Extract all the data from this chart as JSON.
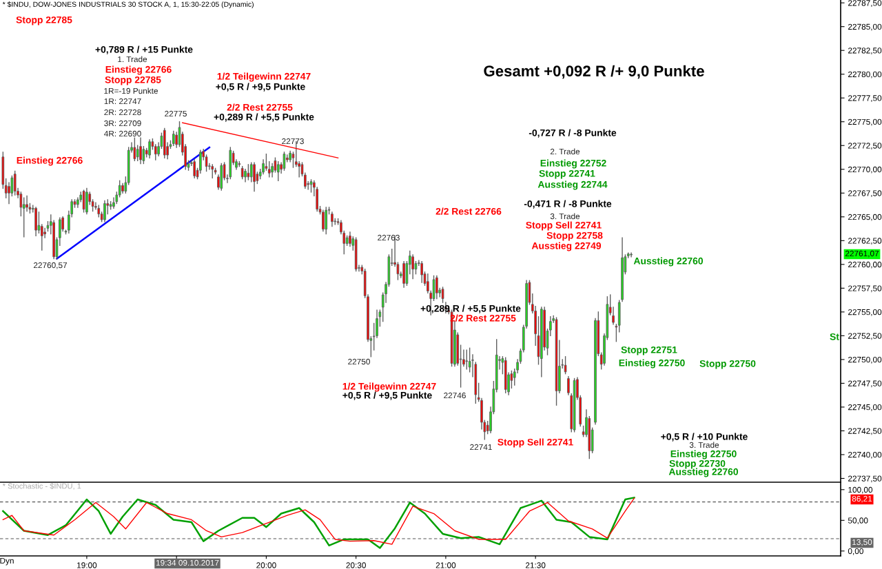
{
  "chart_data": [
    {
      "type": "candlestick",
      "title": "* $INDU, DOW-JONES INDUSTRIALS 30 STOCK A, 1, 15:30-22:05 (Dynamic)",
      "subtitle": "Gesamt +0,092 R /+ 9,0 Punkte",
      "x": [
        "2017-10-09T18:32",
        "2017-10-09T18:33",
        "2017-10-09T18:34",
        "2017-10-09T18:35",
        "2017-10-09T18:36",
        "2017-10-09T18:37",
        "2017-10-09T18:38",
        "2017-10-09T18:39",
        "2017-10-09T18:40",
        "2017-10-09T18:41",
        "2017-10-09T18:42",
        "2017-10-09T18:43",
        "2017-10-09T18:44",
        "2017-10-09T18:45",
        "2017-10-09T18:46",
        "2017-10-09T18:47",
        "2017-10-09T18:48",
        "2017-10-09T18:49",
        "2017-10-09T18:50",
        "2017-10-09T18:51",
        "2017-10-09T18:52",
        "2017-10-09T18:53",
        "2017-10-09T18:54",
        "2017-10-09T18:55",
        "2017-10-09T18:56",
        "2017-10-09T18:57",
        "2017-10-09T18:58",
        "2017-10-09T18:59",
        "2017-10-09T19:00",
        "2017-10-09T19:01",
        "2017-10-09T19:02",
        "2017-10-09T19:03",
        "2017-10-09T19:04",
        "2017-10-09T19:05",
        "2017-10-09T19:06",
        "2017-10-09T19:07",
        "2017-10-09T19:08",
        "2017-10-09T19:09",
        "2017-10-09T19:10",
        "2017-10-09T19:11",
        "2017-10-09T19:12",
        "2017-10-09T19:13",
        "2017-10-09T19:14",
        "2017-10-09T19:15",
        "2017-10-09T19:16",
        "2017-10-09T19:17",
        "2017-10-09T19:18",
        "2017-10-09T19:19",
        "2017-10-09T19:20",
        "2017-10-09T19:21",
        "2017-10-09T19:22",
        "2017-10-09T19:23",
        "2017-10-09T19:24",
        "2017-10-09T19:25",
        "2017-10-09T19:26",
        "2017-10-09T19:27",
        "2017-10-09T19:28",
        "2017-10-09T19:29",
        "2017-10-09T19:30",
        "2017-10-09T19:31",
        "2017-10-09T19:32",
        "2017-10-09T19:33",
        "2017-10-09T19:34",
        "2017-10-09T19:35",
        "2017-10-09T19:36",
        "2017-10-09T19:37",
        "2017-10-09T19:38",
        "2017-10-09T19:39",
        "2017-10-09T19:40",
        "2017-10-09T19:41",
        "2017-10-09T19:42",
        "2017-10-09T19:43",
        "2017-10-09T19:44",
        "2017-10-09T19:45",
        "2017-10-09T19:46",
        "2017-10-09T19:47",
        "2017-10-09T19:48",
        "2017-10-09T19:49",
        "2017-10-09T19:50",
        "2017-10-09T19:51",
        "2017-10-09T19:52",
        "2017-10-09T19:53",
        "2017-10-09T19:54",
        "2017-10-09T19:55",
        "2017-10-09T19:56",
        "2017-10-09T19:57",
        "2017-10-09T19:58",
        "2017-10-09T19:59",
        "2017-10-09T20:00",
        "2017-10-09T20:01",
        "2017-10-09T20:02",
        "2017-10-09T20:03",
        "2017-10-09T20:04",
        "2017-10-09T20:05",
        "2017-10-09T20:06",
        "2017-10-09T20:07",
        "2017-10-09T20:08",
        "2017-10-09T20:09",
        "2017-10-09T20:10",
        "2017-10-09T20:11",
        "2017-10-09T20:12",
        "2017-10-09T20:13",
        "2017-10-09T20:14",
        "2017-10-09T20:15",
        "2017-10-09T20:16",
        "2017-10-09T20:17",
        "2017-10-09T20:18",
        "2017-10-09T20:19",
        "2017-10-09T20:20",
        "2017-10-09T20:21",
        "2017-10-09T20:22",
        "2017-10-09T20:23",
        "2017-10-09T20:24",
        "2017-10-09T20:25",
        "2017-10-09T20:26",
        "2017-10-09T20:27",
        "2017-10-09T20:28",
        "2017-10-09T20:29",
        "2017-10-09T20:30",
        "2017-10-09T20:31",
        "2017-10-09T20:32",
        "2017-10-09T20:33",
        "2017-10-09T20:34",
        "2017-10-09T20:35",
        "2017-10-09T20:36",
        "2017-10-09T20:37",
        "2017-10-09T20:38",
        "2017-10-09T20:39",
        "2017-10-09T20:40",
        "2017-10-09T20:41",
        "2017-10-09T20:42",
        "2017-10-09T20:43",
        "2017-10-09T20:44",
        "2017-10-09T20:45",
        "2017-10-09T20:46",
        "2017-10-09T20:47",
        "2017-10-09T20:48",
        "2017-10-09T20:49",
        "2017-10-09T20:50",
        "2017-10-09T20:51",
        "2017-10-09T20:52",
        "2017-10-09T20:53",
        "2017-10-09T20:54",
        "2017-10-09T20:55",
        "2017-10-09T20:56",
        "2017-10-09T20:57",
        "2017-10-09T20:58",
        "2017-10-09T20:59",
        "2017-10-09T21:00",
        "2017-10-09T21:01",
        "2017-10-09T21:02",
        "2017-10-09T21:03",
        "2017-10-09T21:04",
        "2017-10-09T21:05",
        "2017-10-09T21:06",
        "2017-10-09T21:07",
        "2017-10-09T21:08",
        "2017-10-09T21:09",
        "2017-10-09T21:10",
        "2017-10-09T21:11",
        "2017-10-09T21:12",
        "2017-10-09T21:13",
        "2017-10-09T21:14",
        "2017-10-09T21:15",
        "2017-10-09T21:16",
        "2017-10-09T21:17",
        "2017-10-09T21:18",
        "2017-10-09T21:19",
        "2017-10-09T21:20",
        "2017-10-09T21:21",
        "2017-10-09T21:22",
        "2017-10-09T21:23",
        "2017-10-09T21:24",
        "2017-10-09T21:25",
        "2017-10-09T21:26",
        "2017-10-09T21:27",
        "2017-10-09T21:28",
        "2017-10-09T21:29",
        "2017-10-09T21:30",
        "2017-10-09T21:31",
        "2017-10-09T21:32",
        "2017-10-09T21:33",
        "2017-10-09T21:34",
        "2017-10-09T21:35",
        "2017-10-09T21:36",
        "2017-10-09T21:37",
        "2017-10-09T21:38",
        "2017-10-09T21:39",
        "2017-10-09T21:40",
        "2017-10-09T21:41",
        "2017-10-09T21:42",
        "2017-10-09T21:43",
        "2017-10-09T21:44",
        "2017-10-09T21:45",
        "2017-10-09T21:46",
        "2017-10-09T21:47",
        "2017-10-09T21:48",
        "2017-10-09T21:49",
        "2017-10-09T21:50",
        "2017-10-09T21:51",
        "2017-10-09T21:52",
        "2017-10-09T21:53",
        "2017-10-09T21:54",
        "2017-10-09T21:55",
        "2017-10-09T21:56",
        "2017-10-09T21:57",
        "2017-10-09T21:58",
        "2017-10-09T21:59",
        "2017-10-09T22:00",
        "2017-10-09T22:01",
        "2017-10-09T22:02"
      ],
      "ohlc": [
        [
          22771.3,
          22771.8,
          22768.0,
          22768.4
        ],
        [
          22768.3,
          22769.0,
          22767.0,
          22767.5
        ],
        [
          22768.2,
          22768.6,
          22766.4,
          22767.5
        ],
        [
          22767.5,
          22769.3,
          22767.2,
          22769.1
        ],
        [
          22769.5,
          22769.8,
          22767.3,
          22767.7
        ],
        [
          22767.7,
          22768.0,
          22767.0,
          22767.3
        ],
        [
          22767.4,
          22767.6,
          22765.1,
          22766.0
        ],
        [
          22765.9,
          22767.0,
          22762.9,
          22766.3
        ],
        [
          22766.3,
          22767.2,
          22765.6,
          22766.0
        ],
        [
          22766.0,
          22766.4,
          22765.4,
          22765.8
        ],
        [
          22765.8,
          22766.2,
          22765.5,
          22765.9
        ],
        [
          22765.9,
          22766.0,
          22763.0,
          22763.6
        ],
        [
          22763.6,
          22765.5,
          22763.3,
          22764.1
        ],
        [
          22764.0,
          22764.2,
          22761.5,
          22763.0
        ],
        [
          22763.4,
          22763.8,
          22762.8,
          22763.2
        ],
        [
          22763.8,
          22764.5,
          22763.5,
          22764.1
        ],
        [
          22764.1,
          22765.2,
          22763.2,
          22764.5
        ],
        [
          22764.4,
          22764.6,
          22760.6,
          22760.8
        ],
        [
          22760.8,
          22762.8,
          22760.57,
          22762.6
        ],
        [
          22762.8,
          22764.9,
          22762.0,
          22764.7
        ],
        [
          22764.9,
          22765.0,
          22763.5,
          22763.7
        ],
        [
          22763.4,
          22763.6,
          22763.2,
          22763.5
        ],
        [
          22763.6,
          22765.6,
          22763.3,
          22765.2
        ],
        [
          22765.3,
          22766.8,
          22765.0,
          22766.6
        ],
        [
          22766.6,
          22766.8,
          22766.0,
          22766.3
        ],
        [
          22766.3,
          22767.0,
          22766.0,
          22766.8
        ],
        [
          22766.8,
          22767.6,
          22766.6,
          22767.3
        ],
        [
          22767.7,
          22767.8,
          22765.5,
          22765.8
        ],
        [
          22765.5,
          22768.0,
          22765.3,
          22767.6
        ],
        [
          22767.4,
          22767.6,
          22766.3,
          22766.6
        ],
        [
          22766.6,
          22766.8,
          22765.6,
          22766.1
        ],
        [
          22766.1,
          22766.5,
          22765.8,
          22766.0
        ],
        [
          22765.9,
          22766.2,
          22765.0,
          22765.3
        ],
        [
          22765.3,
          22765.5,
          22764.5,
          22764.7
        ],
        [
          22764.7,
          22766.7,
          22764.5,
          22766.4
        ],
        [
          22766.4,
          22766.8,
          22765.3,
          22766.2
        ],
        [
          22766.1,
          22766.6,
          22765.8,
          22766.3
        ],
        [
          22766.1,
          22767.0,
          22765.9,
          22766.5
        ],
        [
          22766.6,
          22767.6,
          22766.4,
          22767.3
        ],
        [
          22767.3,
          22768.8,
          22767.1,
          22768.3
        ],
        [
          22768.3,
          22768.5,
          22767.5,
          22767.7
        ],
        [
          22767.7,
          22769.2,
          22767.5,
          22768.6
        ],
        [
          22768.6,
          22772.3,
          22768.4,
          22772.0
        ],
        [
          22772.0,
          22772.8,
          22771.8,
          22772.3
        ],
        [
          22772.3,
          22773.3,
          22770.9,
          22771.1
        ],
        [
          22771.3,
          22772.5,
          22770.9,
          22772.1
        ],
        [
          22772.4,
          22773.3,
          22770.6,
          22771.0
        ],
        [
          22770.9,
          22772.4,
          22770.6,
          22772.1
        ],
        [
          22772.0,
          22772.2,
          22771.3,
          22771.6
        ],
        [
          22771.5,
          22773.1,
          22771.2,
          22772.9
        ],
        [
          22772.9,
          22773.2,
          22772.1,
          22772.4
        ],
        [
          22772.4,
          22772.6,
          22771.0,
          22771.6
        ],
        [
          22771.6,
          22772.8,
          22771.4,
          22772.4
        ],
        [
          22772.4,
          22773.8,
          22772.2,
          22773.5
        ],
        [
          22774.1,
          22774.3,
          22771.2,
          22771.5
        ],
        [
          22772.4,
          22772.8,
          22771.1,
          22771.5
        ],
        [
          22772.4,
          22773.0,
          22772.2,
          22772.6
        ],
        [
          22772.7,
          22774.0,
          22772.5,
          22773.7
        ],
        [
          22773.6,
          22773.9,
          22772.3,
          22772.6
        ],
        [
          22772.6,
          22775.0,
          22772.4,
          22774.4
        ],
        [
          22773.7,
          22773.9,
          22771.5,
          22771.8
        ],
        [
          22772.4,
          22772.6,
          22770.0,
          22770.3
        ],
        [
          22770.2,
          22770.9,
          22769.9,
          22770.6
        ],
        [
          22770.6,
          22770.9,
          22770.4,
          22770.7
        ],
        [
          22770.8,
          22771.0,
          22769.1,
          22769.3
        ],
        [
          22769.9,
          22770.1,
          22769.0,
          22769.2
        ],
        [
          22769.9,
          22772.0,
          22769.6,
          22771.8
        ],
        [
          22771.9,
          22772.1,
          22771.0,
          22771.3
        ],
        [
          22771.3,
          22771.5,
          22769.8,
          22770.3
        ],
        [
          22770.3,
          22770.6,
          22770.0,
          22770.3
        ],
        [
          22770.3,
          22770.5,
          22769.1,
          22770.0
        ],
        [
          22769.9,
          22770.1,
          22769.5,
          22769.7
        ],
        [
          22769.2,
          22769.4,
          22767.9,
          22768.1
        ],
        [
          22768.0,
          22770.6,
          22767.8,
          22770.4
        ],
        [
          22770.5,
          22770.7,
          22768.9,
          22769.1
        ],
        [
          22769.0,
          22769.4,
          22768.6,
          22769.0
        ],
        [
          22769.2,
          22772.3,
          22769.0,
          22772.0
        ],
        [
          22771.7,
          22771.9,
          22770.5,
          22770.7
        ],
        [
          22770.2,
          22771.0,
          22770.0,
          22770.8
        ],
        [
          22770.6,
          22770.8,
          22770.3,
          22770.5
        ],
        [
          22770.1,
          22770.3,
          22769.0,
          22769.2
        ],
        [
          22769.2,
          22770.0,
          22768.7,
          22769.8
        ],
        [
          22769.6,
          22770.5,
          22768.9,
          22769.2
        ],
        [
          22769.2,
          22770.7,
          22768.7,
          22770.5
        ],
        [
          22770.5,
          22770.7,
          22767.7,
          22768.7
        ],
        [
          22769.5,
          22769.7,
          22768.5,
          22768.8
        ],
        [
          22769.3,
          22770.0,
          22769.0,
          22769.7
        ],
        [
          22769.7,
          22771.0,
          22769.5,
          22770.6
        ],
        [
          22770.3,
          22771.6,
          22769.9,
          22770.1
        ],
        [
          22770.0,
          22770.8,
          22769.2,
          22769.6
        ],
        [
          22769.7,
          22770.6,
          22769.2,
          22770.3
        ],
        [
          22770.9,
          22771.2,
          22769.7,
          22769.9
        ],
        [
          22769.7,
          22770.8,
          22768.8,
          22770.5
        ],
        [
          22770.5,
          22770.7,
          22769.6,
          22770.0
        ],
        [
          22770.1,
          22771.8,
          22769.9,
          22771.6
        ],
        [
          22771.2,
          22771.5,
          22770.8,
          22771.0
        ],
        [
          22771.0,
          22771.9,
          22770.8,
          22771.7
        ],
        [
          22771.6,
          22771.8,
          22770.2,
          22771.2
        ],
        [
          22770.8,
          22772.9,
          22770.3,
          22770.5
        ],
        [
          22770.6,
          22770.8,
          22769.2,
          22770.3
        ],
        [
          22770.5,
          22770.7,
          22769.3,
          22769.5
        ],
        [
          22769.4,
          22769.6,
          22768.0,
          22768.2
        ],
        [
          22768.5,
          22768.7,
          22767.9,
          22768.4
        ],
        [
          22768.4,
          22768.9,
          22767.6,
          22768.7
        ],
        [
          22768.6,
          22768.8,
          22767.2,
          22768.1
        ],
        [
          22767.9,
          22768.1,
          22765.6,
          22765.8
        ],
        [
          22765.8,
          22766.1,
          22765.3,
          22765.5
        ],
        [
          22765.5,
          22765.7,
          22763.5,
          22763.7
        ],
        [
          22763.7,
          22766.0,
          22763.2,
          22765.7
        ],
        [
          22765.7,
          22766.0,
          22765.3,
          22765.7
        ],
        [
          22765.3,
          22765.5,
          22764.0,
          22764.5
        ],
        [
          22764.5,
          22764.8,
          22764.2,
          22764.5
        ],
        [
          22764.5,
          22764.8,
          22764.2,
          22764.4
        ],
        [
          22764.4,
          22764.6,
          22763.2,
          22763.4
        ],
        [
          22763.3,
          22763.5,
          22761.1,
          22762.2
        ],
        [
          22762.2,
          22763.0,
          22762.0,
          22762.8
        ],
        [
          22763.0,
          22763.4,
          22761.9,
          22762.2
        ],
        [
          22762.0,
          22762.9,
          22761.5,
          22762.7
        ],
        [
          22762.6,
          22762.8,
          22759.3,
          22759.5
        ],
        [
          22759.6,
          22759.9,
          22759.3,
          22759.6
        ],
        [
          22759.7,
          22759.9,
          22759.0,
          22759.3
        ],
        [
          22759.3,
          22759.5,
          22756.5,
          22756.7
        ],
        [
          22756.6,
          22756.8,
          22751.9,
          22752.1
        ],
        [
          22752.0,
          22752.4,
          22750.3,
          22752.2
        ],
        [
          22752.4,
          22753.8,
          22751.0,
          22752.4
        ],
        [
          22752.5,
          22755.2,
          22752.3,
          22754.3
        ],
        [
          22754.5,
          22755.2,
          22753.5,
          22755.0
        ],
        [
          22755.5,
          22757.0,
          22754.0,
          22756.8
        ],
        [
          22756.9,
          22758.1,
          22756.0,
          22757.9
        ],
        [
          22757.9,
          22761.0,
          22757.7,
          22760.8
        ],
        [
          22760.1,
          22761.6,
          22759.9,
          22760.1
        ],
        [
          22760.2,
          22763.0,
          22759.8,
          22760.0
        ],
        [
          22760.0,
          22760.2,
          22758.4,
          22759.0
        ],
        [
          22758.8,
          22759.2,
          22758.6,
          22759.0
        ],
        [
          22760.1,
          22760.3,
          22757.6,
          22758.0
        ],
        [
          22758.0,
          22760.3,
          22757.8,
          22760.1
        ],
        [
          22760.0,
          22761.4,
          22759.0,
          22760.9
        ],
        [
          22760.8,
          22761.0,
          22758.5,
          22759.5
        ],
        [
          22759.5,
          22760.3,
          22759.0,
          22760.1
        ],
        [
          22760.1,
          22760.4,
          22759.9,
          22760.1
        ],
        [
          22760.1,
          22760.3,
          22758.1,
          22758.9
        ],
        [
          22759.0,
          22759.2,
          22757.8,
          22758.0
        ],
        [
          22758.2,
          22759.0,
          22757.0,
          22757.2
        ],
        [
          22757.0,
          22757.2,
          22754.7,
          22756.4
        ],
        [
          22756.4,
          22758.8,
          22756.2,
          22758.4
        ],
        [
          22758.6,
          22758.8,
          22756.4,
          22757.0
        ],
        [
          22757.0,
          22757.5,
          22756.6,
          22757.3
        ],
        [
          22757.4,
          22757.6,
          22756.0,
          22756.4
        ],
        [
          22755.5,
          22756.0,
          22754.9,
          22755.3
        ],
        [
          22755.2,
          22755.6,
          22754.8,
          22755.0
        ],
        [
          22755.0,
          22755.2,
          22749.3,
          22749.6
        ],
        [
          22749.5,
          22754.0,
          22749.3,
          22753.1
        ],
        [
          22752.6,
          22752.8,
          22749.4,
          22749.6
        ],
        [
          22750.0,
          22751.5,
          22747.1,
          22750.0
        ],
        [
          22750.0,
          22751.0,
          22749.3,
          22749.5
        ],
        [
          22749.8,
          22751.0,
          22749.0,
          22749.8
        ],
        [
          22749.2,
          22751.2,
          22748.7,
          22749.8
        ],
        [
          22749.9,
          22750.5,
          22748.2,
          22749.9
        ],
        [
          22749.5,
          22749.7,
          22745.4,
          22746.3
        ],
        [
          22746.0,
          22747.5,
          22745.6,
          22745.8
        ],
        [
          22745.7,
          22745.9,
          22742.7,
          22743.4
        ],
        [
          22743.4,
          22743.6,
          22741.6,
          22742.4
        ],
        [
          22743.1,
          22743.5,
          22742.2,
          22742.5
        ],
        [
          22742.5,
          22745.0,
          22742.3,
          22744.5
        ],
        [
          22744.5,
          22747.7,
          22744.3,
          22746.9
        ],
        [
          22746.85,
          22752.1,
          22746.6,
          22750.47
        ],
        [
          22749.9,
          22750.3,
          22749.0,
          22750.0
        ],
        [
          22749.7,
          22750.3,
          22748.5,
          22750.1
        ],
        [
          22749.9,
          22750.2,
          22746.5,
          22746.85
        ],
        [
          22746.6,
          22748.6,
          22746.3,
          22748.4
        ],
        [
          22748.5,
          22748.8,
          22747.0,
          22747.8
        ],
        [
          22748.1,
          22749.0,
          22747.3,
          22748.7
        ],
        [
          22748.9,
          22750.0,
          22748.6,
          22749.7
        ],
        [
          22749.8,
          22751.1,
          22749.6,
          22750.9
        ],
        [
          22751.0,
          22753.6,
          22750.8,
          22753.4
        ],
        [
          22753.5,
          22758.3,
          22753.3,
          22758.0
        ],
        [
          22758.1,
          22758.3,
          22755.8,
          22756.0
        ],
        [
          22755.8,
          22756.9,
          22754.9,
          22755.1
        ],
        [
          22755.1,
          22755.6,
          22751.5,
          22752.7
        ],
        [
          22752.5,
          22754.5,
          22749.5,
          22750.3
        ],
        [
          22750.1,
          22755.5,
          22748.2,
          22755.3
        ],
        [
          22755.2,
          22755.5,
          22751.0,
          22751.3
        ],
        [
          22751.2,
          22753.2,
          22750.5,
          22753.0
        ],
        [
          22753.1,
          22754.5,
          22752.5,
          22754.0
        ],
        [
          22754.1,
          22754.6,
          22753.9,
          22754.3
        ],
        [
          22754.2,
          22754.4,
          22745.2,
          22746.7
        ],
        [
          22746.7,
          22752.0,
          22746.5,
          22749.3
        ],
        [
          22749.4,
          22750.0,
          22749.1,
          22749.4
        ],
        [
          22749.4,
          22750.3,
          22748.5,
          22748.7
        ],
        [
          22748.0,
          22748.2,
          22746.3,
          22746.5
        ],
        [
          22746.2,
          22746.4,
          22742.4,
          22742.7
        ],
        [
          22742.6,
          22748.0,
          22742.4,
          22747.8
        ],
        [
          22747.9,
          22748.1,
          22745.8,
          22746.0
        ],
        [
          22746.0,
          22746.2,
          22743.0,
          22743.2
        ],
        [
          22742.4,
          22743.0,
          22741.9,
          22742.1
        ],
        [
          22742.1,
          22744.7,
          22741.9,
          22743.9
        ],
        [
          22743.8,
          22744.0,
          22739.6,
          22740.4
        ],
        [
          22740.4,
          22742.8,
          22740.2,
          22742.6
        ],
        [
          22743.4,
          22754.3,
          22743.2,
          22754.1
        ],
        [
          22754.1,
          22755.0,
          22750.4,
          22750.6
        ],
        [
          22750.5,
          22750.7,
          22749.0,
          22749.5
        ],
        [
          22749.6,
          22752.7,
          22749.4,
          22752.5
        ],
        [
          22752.3,
          22756.6,
          22752.1,
          22755.8
        ],
        [
          22755.5,
          22756.8,
          22754.7,
          22754.9
        ],
        [
          22754.6,
          22755.5,
          22753.7,
          22753.9
        ],
        [
          22753.5,
          22753.7,
          22751.9,
          22753.4
        ],
        [
          22753.6,
          22756.2,
          22752.9,
          22756.0
        ],
        [
          22756.3,
          22762.8,
          22756.1,
          22760.7
        ],
        [
          22759.2,
          22761.0,
          22759.0,
          22760.8
        ],
        [
          22760.9,
          22761.2,
          22760.7,
          22761.1
        ],
        [
          22761.0,
          22761.2,
          22760.8,
          22761.07
        ]
      ],
      "series": [
        {
          "type": "line",
          "color": "#0000ff",
          "x": [
            "2017-10-09T18:50",
            "2017-10-09T19:41"
          ],
          "values": [
            22760.6,
            22772.3
          ]
        },
        {
          "type": "line",
          "color": "#ff0000",
          "x": [
            "2017-10-09T19:32",
            "2017-10-09T20:24"
          ],
          "values": [
            22774.9,
            22771.2
          ]
        }
      ],
      "xlim": [
        "2017-10-09T18:31",
        "2017-10-09T23:12"
      ],
      "ylim": [
        22737.1,
        22787.8
      ],
      "yticks": [
        {
          "value": 22737.5,
          "label": "22737,50"
        },
        {
          "value": 22740,
          "label": "22740,00"
        },
        {
          "value": 22742.5,
          "label": "22742,50"
        },
        {
          "value": 22745,
          "label": "22745,00"
        },
        {
          "value": 22747.5,
          "label": "22747,50"
        },
        {
          "value": 22750,
          "label": "22750,00"
        },
        {
          "value": 22752.5,
          "label": "22752,50"
        },
        {
          "value": 22755,
          "label": "22755,00"
        },
        {
          "value": 22757.5,
          "label": "22757,50"
        },
        {
          "value": 22760,
          "label": "22760,00"
        },
        {
          "value": 22762.5,
          "label": "22762,50"
        },
        {
          "value": 22765,
          "label": "22765,00"
        },
        {
          "value": 22767.5,
          "label": "22767,50"
        },
        {
          "value": 22770,
          "label": "22770,00"
        },
        {
          "value": 22772.5,
          "label": "22772,50"
        },
        {
          "value": 22775,
          "label": "22775,00"
        },
        {
          "value": 22777.5,
          "label": "22777,50"
        },
        {
          "value": 22780,
          "label": "22780,00"
        },
        {
          "value": 22782.5,
          "label": "22782,50"
        },
        {
          "value": 22785,
          "label": "22785,00"
        },
        {
          "value": 22787.5,
          "label": "22787,50"
        }
      ],
      "tick_labels": "y",
      "annotations": [
        "Stopp 22785",
        "+0,789 R / +15 Punkte",
        "1. Trade",
        "Einstieg 22766",
        "Stopp 22785",
        "1R=-19 Punkte",
        "1R: 22747",
        "2R: 22728",
        "3R: 22709",
        "4R: 22690",
        "22775",
        "1/2 Teilgewinn 22747",
        "+0,5 R / +9,5 Punkte",
        "2/2 Rest 22755",
        "+0,289 R / +5,5 Punkte",
        "22773",
        "Einstieg 22766",
        "22760,57",
        "-0,727 R / -8 Punkte",
        "2. Trade",
        "Einstieg 22752",
        "Stopp 22741",
        "Ausstieg 22744",
        "-0,471 R / -8 Punkte",
        "3. Trade",
        "Stopp Sell 22741",
        "Stopp 22758",
        "Ausstieg 22749",
        "2/2 Rest 22766",
        "22763",
        "Ausstieg 22760",
        "+0,289 R / +5,5 Punkte",
        "2/2 Rest 22755",
        "22750",
        "1/2 Teilgewinn 22747",
        "+0,5 R / +9,5 Punkte",
        "22746",
        "22741",
        "Stopp Sell 22741",
        "Stopp 22751",
        "Einstieg 22750",
        "Stopp 22750",
        "St",
        "+0,5 R / +10 Punkte",
        "3. Trade",
        "Einstieg 22750",
        "Stopp 22730",
        "Ausstieg 22760",
        "22761,07"
      ]
    },
    {
      "type": "line",
      "title": "* Stochastic - $INDU, 1",
      "series": [
        {
          "color": "#00a000",
          "x": [
            "2017-10-09T18:32",
            "2017-10-09T18:39",
            "2017-10-09T18:47",
            "2017-10-09T18:53",
            "2017-10-09T19:00",
            "2017-10-09T19:04",
            "2017-10-09T19:08",
            "2017-10-09T19:12",
            "2017-10-09T19:17",
            "2017-10-09T19:23",
            "2017-10-09T19:29",
            "2017-10-09T19:35",
            "2017-10-09T19:39",
            "2017-10-09T19:44",
            "2017-10-09T19:52",
            "2017-10-09T19:56",
            "2017-10-09T20:00",
            "2017-10-09T20:05",
            "2017-10-09T20:11",
            "2017-10-09T20:16",
            "2017-10-09T20:21",
            "2017-10-09T20:26",
            "2017-10-09T20:34",
            "2017-10-09T20:38",
            "2017-10-09T20:43",
            "2017-10-09T20:48",
            "2017-10-09T20:53",
            "2017-10-09T20:59",
            "2017-10-09T21:05",
            "2017-10-09T21:11",
            "2017-10-09T21:18",
            "2017-10-09T21:25",
            "2017-10-09T21:32",
            "2017-10-09T21:37",
            "2017-10-09T21:42",
            "2017-10-09T21:48",
            "2017-10-09T21:54",
            "2017-10-09T22:00",
            "2017-10-09T22:03"
          ],
          "values": [
            65,
            33,
            26,
            42,
            84,
            65,
            28,
            56,
            84,
            75,
            51,
            47,
            16,
            33,
            54,
            54,
            39,
            61,
            70,
            47,
            9,
            19,
            19,
            5,
            37,
            79,
            61,
            28,
            21,
            23,
            11,
            70,
            82,
            51,
            47,
            23,
            19,
            84,
            87
          ]
        },
        {
          "color": "#ff0000",
          "x": [
            "2017-10-09T18:32",
            "2017-10-09T18:35",
            "2017-10-09T18:39",
            "2017-10-09T18:49",
            "2017-10-09T18:56",
            "2017-10-09T19:03",
            "2017-10-09T19:09",
            "2017-10-09T19:13",
            "2017-10-09T19:20",
            "2017-10-09T19:27",
            "2017-10-09T19:35",
            "2017-10-09T19:40",
            "2017-10-09T19:45",
            "2017-10-09T19:52",
            "2017-10-09T20:00",
            "2017-10-09T20:07",
            "2017-10-09T20:13",
            "2017-10-09T20:18",
            "2017-10-09T20:23",
            "2017-10-09T20:28",
            "2017-10-09T20:36",
            "2017-10-09T20:42",
            "2017-10-09T20:49",
            "2017-10-09T20:56",
            "2017-10-09T21:03",
            "2017-10-09T21:11",
            "2017-10-09T21:20",
            "2017-10-09T21:28",
            "2017-10-09T21:34",
            "2017-10-09T21:41",
            "2017-10-09T21:49",
            "2017-10-09T21:54",
            "2017-10-09T22:00",
            "2017-10-09T22:03"
          ],
          "values": [
            51,
            58,
            33,
            26,
            51,
            79,
            56,
            36,
            79,
            61,
            51,
            33,
            23,
            30,
            45,
            58,
            67,
            51,
            19,
            16,
            17,
            11,
            73,
            61,
            33,
            19,
            19,
            65,
            79,
            49,
            36,
            21,
            65,
            86
          ]
        }
      ],
      "xlim": [
        "2017-10-09T18:31",
        "2017-10-09T23:12"
      ],
      "ylim": [
        -8,
        111
      ],
      "yticks": [
        {
          "value": 0,
          "label": "0,00"
        },
        {
          "value": 50,
          "label": "50,00"
        },
        {
          "value": 100,
          "label": "100,00"
        }
      ],
      "xticks": [
        {
          "value": "2017-10-09T19:00",
          "label": "19:00"
        },
        {
          "value": "2017-10-09T19:30",
          "label": null
        },
        {
          "value": "2017-10-09T20:00",
          "label": "20:00"
        },
        {
          "value": "2017-10-09T20:30",
          "label": "20:30"
        },
        {
          "value": "2017-10-09T21:00",
          "label": "21:00"
        },
        {
          "value": "2017-10-09T21:30",
          "label": "21:30"
        }
      ],
      "ref_lines": [
        {
          "axis": "y",
          "value": 80,
          "color": "#555555",
          "line_style": "dashed"
        },
        {
          "axis": "y",
          "value": 20,
          "color": "#555555",
          "line_style": "dashed"
        }
      ],
      "annotations": [
        "86,21",
        "13,50",
        "19:34 09.10.2017",
        "Dyn"
      ]
    }
  ]
}
